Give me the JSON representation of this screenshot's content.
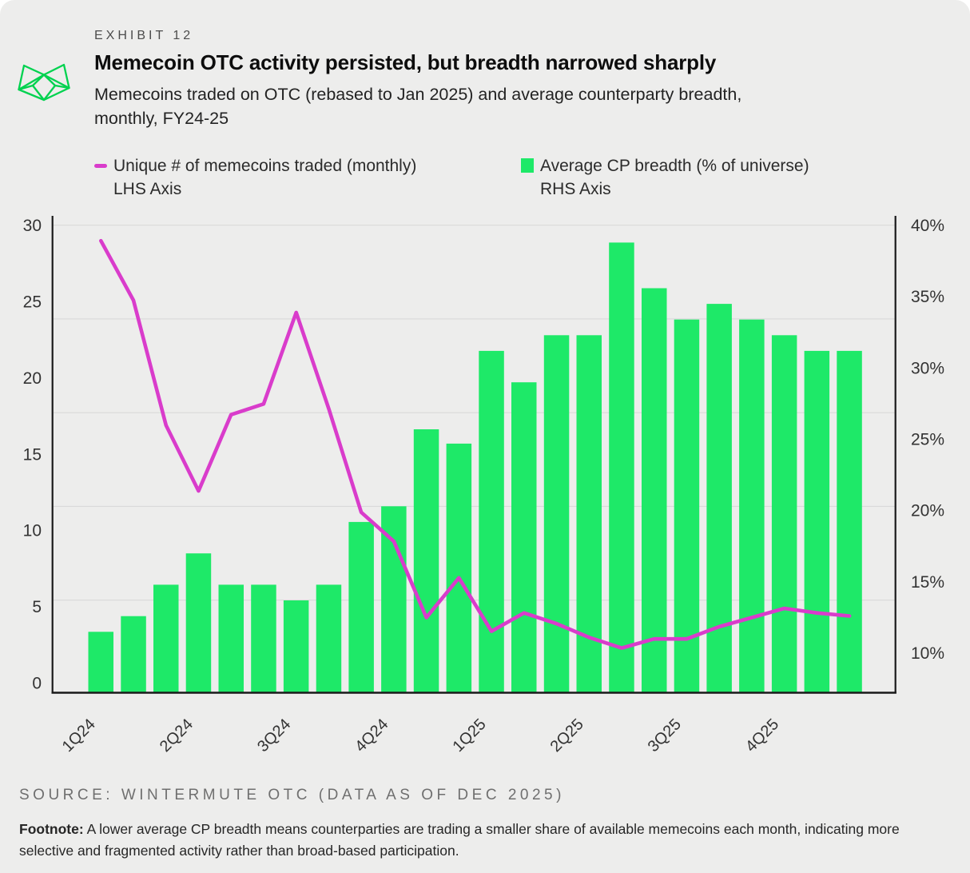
{
  "page": {
    "background": "#ededec"
  },
  "header": {
    "exhibit_label": "EXHIBIT 12",
    "title": "Memecoin OTC activity persisted, but breadth narrowed sharply",
    "subtitle_line1": "Memecoins traded on OTC (rebased to Jan 2025) and average counterparty breadth,",
    "subtitle_line2": "monthly,  FY24-25"
  },
  "legend": {
    "line_series": {
      "label": "Unique # of memecoins traded (monthly)",
      "sublabel": "LHS Axis",
      "color": "#d93ccb"
    },
    "bar_series": {
      "label": "Average CP breadth (% of universe)",
      "sublabel": "RHS Axis",
      "color": "#1ee968"
    }
  },
  "footer": {
    "source": "SOURCE: WINTERMUTE OTC (DATA AS OF DEC 2025)",
    "footnote_label": "Footnote:",
    "footnote_text": " A lower average CP breadth means counterparties are trading a smaller share of available memecoins each month, indicating more selective and fragmented activity rather than broad-based participation."
  },
  "colors": {
    "bar_green": "#1ee968",
    "line_magenta": "#d93ccb",
    "logo_green": "#00d24f",
    "grid": "#d9d9d9",
    "spine": "#1a1a1a",
    "tick_text": "#333333"
  },
  "chart_data": {
    "type": "bar+line",
    "title": "Memecoin OTC activity persisted, but breadth narrowed sharply",
    "x_frequency": "monthly",
    "months": [
      "Jan24",
      "Feb24",
      "Mar24",
      "Apr24",
      "May24",
      "Jun24",
      "Jul24",
      "Aug24",
      "Sep24",
      "Oct24",
      "Nov24",
      "Dec24",
      "Jan25",
      "Feb25",
      "Mar25",
      "Apr25",
      "May25",
      "Jun25",
      "Jul25",
      "Aug25",
      "Sep25",
      "Oct25",
      "Nov25",
      "Dec25"
    ],
    "quarter_ticks": [
      "1Q24",
      "2Q24",
      "3Q24",
      "4Q24",
      "1Q25",
      "2Q25",
      "3Q25",
      "4Q25"
    ],
    "quarter_tick_month_index": [
      0,
      3,
      6,
      9,
      12,
      15,
      18,
      21
    ],
    "series": [
      {
        "name": "Unique # of memecoins traded (monthly)",
        "type": "line",
        "axis": "left",
        "color": "#d93ccb",
        "values": [
          29.0,
          25.1,
          16.9,
          12.6,
          17.6,
          18.3,
          24.3,
          18.0,
          11.2,
          9.3,
          4.3,
          6.9,
          3.4,
          4.6,
          3.9,
          3.0,
          2.3,
          2.9,
          2.9,
          3.7,
          4.3,
          4.9,
          4.6,
          4.4
        ]
      },
      {
        "name": "Average CP breadth (% of universe)",
        "type": "bar",
        "axis": "right",
        "color": "#1ee968",
        "values": [
          11.5,
          12.6,
          14.8,
          17.0,
          14.8,
          14.8,
          13.7,
          14.8,
          19.2,
          20.3,
          25.7,
          24.7,
          31.2,
          29.0,
          32.3,
          32.3,
          38.8,
          35.6,
          33.4,
          34.5,
          33.4,
          32.3,
          31.2,
          31.2
        ]
      }
    ],
    "left_axis": {
      "side": "left",
      "ticks": [
        0,
        5,
        10,
        15,
        20,
        25,
        30
      ],
      "range": [
        0,
        31.3
      ],
      "grid": true
    },
    "right_axis": {
      "side": "right",
      "tick_labels": [
        "10%",
        "15%",
        "20%",
        "25%",
        "30%",
        "35%",
        "40%"
      ],
      "tick_values": [
        10,
        15,
        20,
        25,
        30,
        35,
        40
      ],
      "range": [
        7.2,
        40.8
      ]
    },
    "legend_position": "top-left"
  }
}
